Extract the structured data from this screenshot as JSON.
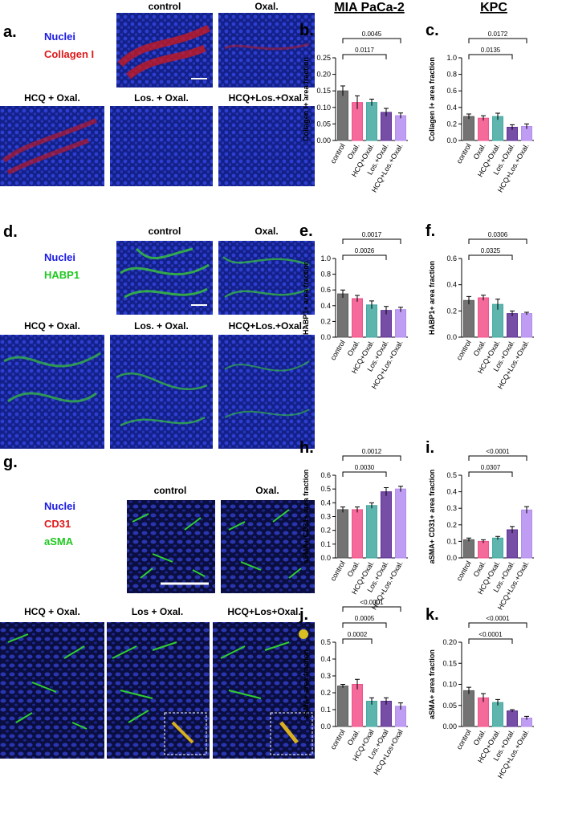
{
  "column_titles": [
    "MIA PaCa-2",
    "KPC"
  ],
  "panels": {
    "a": {
      "letter": "a.",
      "legend": [
        "Nuclei",
        "Collagen I"
      ],
      "images": [
        "control",
        "Oxal.",
        "HCQ + Oxal.",
        "Los. + Oxal.",
        "HCQ+Los.+Oxal."
      ]
    },
    "d": {
      "letter": "d.",
      "legend": [
        "Nuclei",
        "HABP1"
      ],
      "images": [
        "control",
        "Oxal.",
        "HCQ + Oxal.",
        "Los. + Oxal.",
        "HCQ+Los.+Oxal."
      ]
    },
    "g": {
      "letter": "g.",
      "legend": [
        "Nuclei",
        "CD31",
        "aSMA"
      ],
      "images": [
        "control",
        "Oxal.",
        "HCQ + Oxal.",
        "Los + Oxal.",
        "HCQ+Los+Oxal."
      ]
    }
  },
  "chart_data": [
    {
      "type": "bar",
      "letter": "b.",
      "ylabel": "Collagen I+ area fraction",
      "categories": [
        "control",
        "Oxal.",
        "HCQ+Oxal.",
        "Los.+Oxal.",
        "HCQ+Los.+Oxal."
      ],
      "values": [
        0.15,
        0.115,
        0.115,
        0.085,
        0.075
      ],
      "errors": [
        0.015,
        0.02,
        0.01,
        0.012,
        0.008
      ],
      "colors": [
        "#5a5a5a",
        "#f2508a",
        "#42a8a0",
        "#5e2f96",
        "#b48cf0"
      ],
      "ylim": [
        0,
        0.25
      ],
      "yticks": [
        {
          "value": 0,
          "label": "0.00"
        },
        {
          "value": 0.05,
          "label": "0.05"
        },
        {
          "value": 0.1,
          "label": "0.10"
        },
        {
          "value": 0.15,
          "label": "0.15"
        },
        {
          "value": 0.2,
          "label": "0.20"
        },
        {
          "value": 0.25,
          "label": "0.25"
        }
      ],
      "comparisons": [
        {
          "to": 3,
          "label": "0.0117"
        },
        {
          "to": 4,
          "label": "0.0045"
        }
      ]
    },
    {
      "type": "bar",
      "letter": "c.",
      "ylabel": "Collagen I+ area fraction",
      "categories": [
        "control",
        "Oxal.",
        "HCQ+Oxal.",
        "Los.+Oxal.",
        "HCQ+Los.+Oxal."
      ],
      "values": [
        0.29,
        0.27,
        0.29,
        0.16,
        0.17
      ],
      "errors": [
        0.03,
        0.03,
        0.04,
        0.03,
        0.03
      ],
      "colors": [
        "#5a5a5a",
        "#f2508a",
        "#42a8a0",
        "#5e2f96",
        "#b48cf0"
      ],
      "ylim": [
        0,
        1
      ],
      "yticks": [
        {
          "value": 0,
          "label": "0.0"
        },
        0.2,
        0.4,
        0.6,
        0.8,
        {
          "value": 1,
          "label": "1.0"
        }
      ],
      "comparisons": [
        {
          "to": 3,
          "label": "0.0135"
        },
        {
          "to": 4,
          "label": "0.0172"
        }
      ]
    },
    {
      "type": "bar",
      "letter": "e.",
      "ylabel": "HABP1+ area fraction",
      "categories": [
        "control",
        "Oxal.",
        "HCQ+Oxal.",
        "Los.+Oxal.",
        "HCQ+Los.+Oxal."
      ],
      "values": [
        0.55,
        0.49,
        0.41,
        0.34,
        0.35
      ],
      "errors": [
        0.05,
        0.04,
        0.05,
        0.05,
        0.03
      ],
      "colors": [
        "#5a5a5a",
        "#f2508a",
        "#42a8a0",
        "#5e2f96",
        "#b48cf0"
      ],
      "ylim": [
        0,
        1
      ],
      "yticks": [
        {
          "value": 0,
          "label": "0.0"
        },
        0.2,
        0.4,
        0.6,
        0.8,
        {
          "value": 1,
          "label": "1.0"
        }
      ],
      "comparisons": [
        {
          "to": 3,
          "label": "0.0026"
        },
        {
          "to": 4,
          "label": "0.0017"
        }
      ]
    },
    {
      "type": "bar",
      "letter": "f.",
      "ylabel": "HABP1+ area fraction",
      "categories": [
        "control",
        "Oxal.",
        "HCQ+Oxal.",
        "Los.+Oxal.",
        "HCQ+Los.+Oxal."
      ],
      "values": [
        0.28,
        0.3,
        0.25,
        0.18,
        0.18
      ],
      "errors": [
        0.03,
        0.02,
        0.04,
        0.02,
        0.01
      ],
      "colors": [
        "#5a5a5a",
        "#f2508a",
        "#42a8a0",
        "#5e2f96",
        "#b48cf0"
      ],
      "ylim": [
        0,
        0.6
      ],
      "yticks": [
        {
          "value": 0,
          "label": "0.0"
        },
        0.2,
        0.4,
        0.6
      ],
      "comparisons": [
        {
          "to": 3,
          "label": "0.0325"
        },
        {
          "to": 4,
          "label": "0.0306"
        }
      ]
    },
    {
      "type": "bar",
      "letter": "h.",
      "ylabel": "aSMA+ CD31+ area fraction",
      "categories": [
        "control",
        "Oxal.",
        "HCQ+Oxal.",
        "Los.+Oxal.",
        "HCQ+Los.+Oxal."
      ],
      "values": [
        0.35,
        0.35,
        0.38,
        0.48,
        0.5
      ],
      "errors": [
        0.02,
        0.02,
        0.02,
        0.03,
        0.02
      ],
      "colors": [
        "#5a5a5a",
        "#f2508a",
        "#42a8a0",
        "#5e2f96",
        "#b48cf0"
      ],
      "ylim": [
        0,
        0.6
      ],
      "yticks": [
        {
          "value": 0,
          "label": "0.0"
        },
        0.1,
        0.2,
        0.3,
        0.4,
        0.5,
        0.6
      ],
      "comparisons": [
        {
          "to": 3,
          "label": "0.0030"
        },
        {
          "to": 4,
          "label": "0.0012"
        }
      ]
    },
    {
      "type": "bar",
      "letter": "i.",
      "ylabel": "aSMA+ CD31+ area fraction",
      "categories": [
        "control",
        "Oxal.",
        "HCQ+Oxal.",
        "Los.+Oxal.",
        "HCQ+Los.+Oxal."
      ],
      "values": [
        0.11,
        0.1,
        0.12,
        0.17,
        0.29
      ],
      "errors": [
        0.01,
        0.01,
        0.01,
        0.02,
        0.02
      ],
      "colors": [
        "#5a5a5a",
        "#f2508a",
        "#42a8a0",
        "#5e2f96",
        "#b48cf0"
      ],
      "ylim": [
        0,
        0.5
      ],
      "yticks": [
        {
          "value": 0,
          "label": "0.0"
        },
        0.1,
        0.2,
        0.3,
        0.4,
        0.5
      ],
      "comparisons": [
        {
          "to": 3,
          "label": "0.0307"
        },
        {
          "to": 4,
          "label": "<0.0001"
        }
      ]
    },
    {
      "type": "bar",
      "letter": "j.",
      "ylabel": "aSMA+ area fraction",
      "categories": [
        "control",
        "Oxal.",
        "HCQ+Oxal",
        "Los.+Oxal",
        "HCQ+Los+Oxal"
      ],
      "values": [
        0.24,
        0.25,
        0.15,
        0.15,
        0.12
      ],
      "errors": [
        0.01,
        0.03,
        0.02,
        0.02,
        0.02
      ],
      "colors": [
        "#5a5a5a",
        "#f2508a",
        "#42a8a0",
        "#5e2f96",
        "#b48cf0"
      ],
      "ylim": [
        0,
        0.5
      ],
      "yticks": [
        {
          "value": 0,
          "label": "0.0"
        },
        0.1,
        0.2,
        0.3,
        0.4,
        0.5
      ],
      "comparisons": [
        {
          "to": 2,
          "label": "0.0002"
        },
        {
          "to": 3,
          "label": "0.0005"
        },
        {
          "to": 4,
          "label": "<0.0001"
        }
      ]
    },
    {
      "type": "bar",
      "letter": "k.",
      "ylabel": "aSMA+ area fraction",
      "categories": [
        "control",
        "Oxal.",
        "HCQ+Oxal.",
        "Los.+Oxal.",
        "HCQ+Los.+Oxal."
      ],
      "values": [
        0.085,
        0.068,
        0.057,
        0.037,
        0.02
      ],
      "errors": [
        0.008,
        0.01,
        0.007,
        0.003,
        0.004
      ],
      "colors": [
        "#5a5a5a",
        "#f2508a",
        "#42a8a0",
        "#5e2f96",
        "#b48cf0"
      ],
      "ylim": [
        0,
        0.2
      ],
      "yticks": [
        {
          "value": 0,
          "label": "0.00"
        },
        0.05,
        {
          "value": 0.1,
          "label": "0.10"
        },
        0.15,
        {
          "value": 0.2,
          "label": "0.20"
        }
      ],
      "comparisons": [
        {
          "to": 3,
          "label": "<0.0001"
        },
        {
          "to": 4,
          "label": "<0.0001"
        }
      ]
    }
  ]
}
